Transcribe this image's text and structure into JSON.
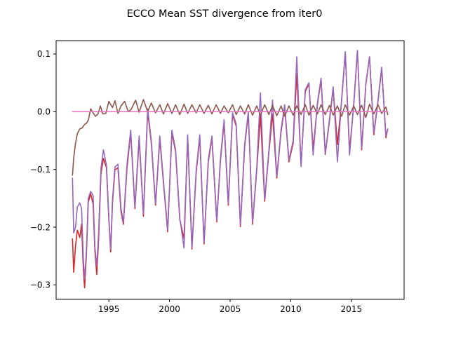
{
  "chart_data": {
    "type": "line",
    "title": "ECCO Mean SST divergence from iter0",
    "xlabel": "",
    "ylabel": "",
    "xlim": [
      1990.65,
      2019.35
    ],
    "ylim": [
      -0.325,
      0.123
    ],
    "x_ticks": [
      1995,
      2000,
      2005,
      2010,
      2015
    ],
    "y_ticks": [
      -0.3,
      -0.2,
      -0.1,
      0.0,
      0.1
    ],
    "x_tick_labels": [
      "1995",
      "2000",
      "2005",
      "2010",
      "2015"
    ],
    "y_tick_labels": [
      "−0.3",
      "−0.2",
      "−0.1",
      "0.0",
      "0.1"
    ],
    "grid": false,
    "legend": "none",
    "series": [
      {
        "color": "#d62728",
        "points": [
          [
            1992.0,
            -0.22
          ],
          [
            1992.1,
            -0.278
          ],
          [
            1992.25,
            -0.233
          ],
          [
            1992.4,
            -0.205
          ],
          [
            1992.6,
            -0.218
          ],
          [
            1992.75,
            -0.195
          ],
          [
            1992.9,
            -0.275
          ],
          [
            1993.0,
            -0.305
          ],
          [
            1993.15,
            -0.247
          ],
          [
            1993.3,
            -0.157
          ],
          [
            1993.5,
            -0.142
          ],
          [
            1993.7,
            -0.16
          ],
          [
            1993.85,
            -0.242
          ],
          [
            1994.0,
            -0.282
          ],
          [
            1994.15,
            -0.223
          ],
          [
            1994.35,
            -0.107
          ],
          [
            1994.55,
            -0.081
          ],
          [
            1994.8,
            -0.097
          ],
          [
            1995.0,
            -0.187
          ],
          [
            1995.15,
            -0.243
          ],
          [
            1995.3,
            -0.158
          ],
          [
            1995.5,
            -0.101
          ],
          [
            1995.75,
            -0.097
          ],
          [
            1996.0,
            -0.173
          ],
          [
            1996.2,
            -0.195
          ],
          [
            1996.5,
            -0.097
          ],
          [
            1996.8,
            -0.036
          ],
          [
            1997.15,
            -0.168
          ],
          [
            1997.5,
            -0.047
          ],
          [
            1997.85,
            -0.181
          ],
          [
            1998.2,
            0.0
          ],
          [
            1998.5,
            -0.054
          ],
          [
            1998.85,
            -0.162
          ],
          [
            1999.2,
            -0.047
          ],
          [
            1999.5,
            -0.123
          ],
          [
            1999.85,
            -0.208
          ],
          [
            2000.2,
            -0.037
          ],
          [
            2000.5,
            -0.069
          ],
          [
            2000.85,
            -0.187
          ],
          [
            2001.2,
            -0.22
          ],
          [
            2001.5,
            -0.044
          ],
          [
            2001.85,
            -0.238
          ],
          [
            2002.2,
            -0.106
          ],
          [
            2002.5,
            -0.045
          ],
          [
            2002.85,
            -0.229
          ],
          [
            2003.2,
            -0.087
          ],
          [
            2003.5,
            -0.046
          ],
          [
            2003.9,
            -0.191
          ],
          [
            2004.2,
            -0.086
          ],
          [
            2004.5,
            -0.018
          ],
          [
            2004.85,
            -0.162
          ],
          [
            2005.2,
            -0.005
          ],
          [
            2005.5,
            -0.025
          ],
          [
            2005.85,
            -0.199
          ],
          [
            2006.2,
            -0.06
          ],
          [
            2006.5,
            -0.003
          ],
          [
            2006.85,
            -0.195
          ],
          [
            2007.2,
            -0.1
          ],
          [
            2007.5,
            -0.006
          ],
          [
            2007.85,
            -0.155
          ],
          [
            2008.2,
            -0.07
          ],
          [
            2008.5,
            -0.004
          ],
          [
            2008.85,
            -0.115
          ],
          [
            2009.2,
            -0.035
          ],
          [
            2009.5,
            0.008
          ],
          [
            2009.85,
            -0.087
          ],
          [
            2010.2,
            -0.055
          ],
          [
            2010.5,
            0.066
          ],
          [
            2010.85,
            -0.092
          ],
          [
            2011.2,
            0.035
          ],
          [
            2011.5,
            0.048
          ],
          [
            2011.85,
            -0.065
          ],
          [
            2012.2,
            0.012
          ],
          [
            2012.5,
            0.055
          ],
          [
            2012.85,
            -0.074
          ],
          [
            2013.2,
            -0.015
          ],
          [
            2013.5,
            0.04
          ],
          [
            2013.85,
            -0.057
          ],
          [
            2014.2,
            0.02
          ],
          [
            2014.5,
            0.102
          ],
          [
            2014.85,
            -0.068
          ],
          [
            2015.2,
            0.012
          ],
          [
            2015.5,
            0.105
          ],
          [
            2015.85,
            -0.066
          ],
          [
            2016.2,
            0.048
          ],
          [
            2016.5,
            0.095
          ],
          [
            2016.85,
            -0.04
          ],
          [
            2017.2,
            0.018
          ],
          [
            2017.5,
            0.075
          ],
          [
            2017.85,
            -0.045
          ],
          [
            2018.0,
            -0.03
          ]
        ]
      },
      {
        "color": "#9467bd",
        "points": [
          [
            1992.0,
            -0.115
          ],
          [
            1992.1,
            -0.21
          ],
          [
            1992.25,
            -0.2
          ],
          [
            1992.4,
            -0.165
          ],
          [
            1992.6,
            -0.158
          ],
          [
            1992.75,
            -0.168
          ],
          [
            1992.9,
            -0.258
          ],
          [
            1993.0,
            -0.29
          ],
          [
            1993.15,
            -0.24
          ],
          [
            1993.3,
            -0.15
          ],
          [
            1993.5,
            -0.138
          ],
          [
            1993.7,
            -0.145
          ],
          [
            1993.85,
            -0.235
          ],
          [
            1994.0,
            -0.268
          ],
          [
            1994.15,
            -0.212
          ],
          [
            1994.35,
            -0.098
          ],
          [
            1994.55,
            -0.066
          ],
          [
            1994.8,
            -0.093
          ],
          [
            1995.0,
            -0.183
          ],
          [
            1995.15,
            -0.238
          ],
          [
            1995.3,
            -0.152
          ],
          [
            1995.5,
            -0.096
          ],
          [
            1995.75,
            -0.091
          ],
          [
            1996.0,
            -0.167
          ],
          [
            1996.2,
            -0.192
          ],
          [
            1996.5,
            -0.09
          ],
          [
            1996.8,
            -0.032
          ],
          [
            1997.15,
            -0.165
          ],
          [
            1997.5,
            -0.042
          ],
          [
            1997.85,
            -0.177
          ],
          [
            1998.2,
            0.005
          ],
          [
            1998.5,
            -0.05
          ],
          [
            1998.85,
            -0.159
          ],
          [
            1999.2,
            -0.042
          ],
          [
            1999.5,
            -0.119
          ],
          [
            1999.85,
            -0.205
          ],
          [
            2000.2,
            -0.032
          ],
          [
            2000.5,
            -0.066
          ],
          [
            2000.85,
            -0.184
          ],
          [
            2001.2,
            -0.236
          ],
          [
            2001.5,
            -0.04
          ],
          [
            2001.85,
            -0.235
          ],
          [
            2002.2,
            -0.102
          ],
          [
            2002.5,
            -0.04
          ],
          [
            2002.85,
            -0.226
          ],
          [
            2003.2,
            -0.083
          ],
          [
            2003.5,
            -0.042
          ],
          [
            2003.9,
            -0.188
          ],
          [
            2004.2,
            -0.082
          ],
          [
            2004.5,
            -0.014
          ],
          [
            2004.85,
            -0.159
          ],
          [
            2005.2,
            -0.002
          ],
          [
            2005.5,
            -0.021
          ],
          [
            2005.85,
            -0.196
          ],
          [
            2006.2,
            -0.056
          ],
          [
            2006.5,
            0.0
          ],
          [
            2006.85,
            -0.192
          ],
          [
            2007.2,
            -0.096
          ],
          [
            2007.5,
            0.033
          ],
          [
            2007.85,
            -0.152
          ],
          [
            2008.2,
            -0.066
          ],
          [
            2008.5,
            0.02
          ],
          [
            2008.85,
            -0.112
          ],
          [
            2009.2,
            -0.031
          ],
          [
            2009.5,
            0.012
          ],
          [
            2009.85,
            -0.084
          ],
          [
            2010.2,
            -0.05
          ],
          [
            2010.5,
            0.095
          ],
          [
            2010.85,
            -0.095
          ],
          [
            2011.2,
            0.038
          ],
          [
            2011.5,
            0.05
          ],
          [
            2011.85,
            -0.075
          ],
          [
            2012.2,
            0.015
          ],
          [
            2012.5,
            0.058
          ],
          [
            2012.85,
            -0.072
          ],
          [
            2013.2,
            -0.012
          ],
          [
            2013.5,
            0.043
          ],
          [
            2013.85,
            -0.087
          ],
          [
            2014.2,
            0.022
          ],
          [
            2014.5,
            0.104
          ],
          [
            2014.85,
            -0.075
          ],
          [
            2015.2,
            0.015
          ],
          [
            2015.5,
            0.106
          ],
          [
            2015.85,
            -0.063
          ],
          [
            2016.2,
            0.05
          ],
          [
            2016.5,
            0.095
          ],
          [
            2016.85,
            -0.037
          ],
          [
            2017.2,
            0.02
          ],
          [
            2017.5,
            0.077
          ],
          [
            2017.85,
            -0.042
          ],
          [
            2018.0,
            -0.03
          ]
        ]
      },
      {
        "color": "#8c564b",
        "points": [
          [
            1992.0,
            -0.11
          ],
          [
            1992.1,
            -0.08
          ],
          [
            1992.25,
            -0.055
          ],
          [
            1992.4,
            -0.038
          ],
          [
            1992.6,
            -0.03
          ],
          [
            1992.8,
            -0.028
          ],
          [
            1993.0,
            -0.022
          ],
          [
            1993.15,
            -0.02
          ],
          [
            1993.3,
            -0.015
          ],
          [
            1993.5,
            0.005
          ],
          [
            1993.7,
            -0.002
          ],
          [
            1993.9,
            -0.008
          ],
          [
            1994.1,
            -0.004
          ],
          [
            1994.3,
            0.01
          ],
          [
            1994.5,
            -0.004
          ],
          [
            1994.75,
            -0.003
          ],
          [
            1995.0,
            0.018
          ],
          [
            1995.3,
            0.007
          ],
          [
            1995.5,
            0.019
          ],
          [
            1995.75,
            -0.003
          ],
          [
            1996.0,
            0.01
          ],
          [
            1996.3,
            0.018
          ],
          [
            1996.6,
            0.0
          ],
          [
            1996.85,
            0.004
          ],
          [
            1997.2,
            0.02
          ],
          [
            1997.5,
            -0.001
          ],
          [
            1997.85,
            0.021
          ],
          [
            1998.2,
            0.0
          ],
          [
            1998.5,
            0.015
          ],
          [
            1998.85,
            -0.002
          ],
          [
            1999.2,
            0.012
          ],
          [
            1999.5,
            -0.004
          ],
          [
            1999.85,
            0.014
          ],
          [
            2000.2,
            -0.003
          ],
          [
            2000.5,
            0.012
          ],
          [
            2000.85,
            -0.005
          ],
          [
            2001.2,
            0.013
          ],
          [
            2001.5,
            -0.003
          ],
          [
            2001.85,
            0.012
          ],
          [
            2002.2,
            -0.002
          ],
          [
            2002.5,
            0.012
          ],
          [
            2002.85,
            -0.003
          ],
          [
            2003.2,
            0.011
          ],
          [
            2003.5,
            -0.004
          ],
          [
            2003.85,
            0.012
          ],
          [
            2004.2,
            -0.003
          ],
          [
            2004.5,
            0.01
          ],
          [
            2004.85,
            -0.002
          ],
          [
            2005.2,
            0.012
          ],
          [
            2005.5,
            -0.005
          ],
          [
            2005.85,
            0.01
          ],
          [
            2006.2,
            -0.004
          ],
          [
            2006.5,
            0.012
          ],
          [
            2006.85,
            -0.006
          ],
          [
            2007.2,
            0.01
          ],
          [
            2007.5,
            -0.006
          ],
          [
            2007.85,
            0.012
          ],
          [
            2008.2,
            -0.005
          ],
          [
            2008.5,
            0.011
          ],
          [
            2008.85,
            -0.007
          ],
          [
            2009.2,
            0.01
          ],
          [
            2009.5,
            -0.008
          ],
          [
            2009.85,
            0.01
          ],
          [
            2010.2,
            -0.006
          ],
          [
            2010.5,
            0.01
          ],
          [
            2010.85,
            -0.005
          ],
          [
            2011.2,
            0.012
          ],
          [
            2011.5,
            -0.006
          ],
          [
            2011.85,
            0.011
          ],
          [
            2012.2,
            -0.004
          ],
          [
            2012.5,
            0.012
          ],
          [
            2012.85,
            -0.005
          ],
          [
            2013.2,
            0.011
          ],
          [
            2013.5,
            -0.006
          ],
          [
            2013.85,
            0.01
          ],
          [
            2014.2,
            -0.008
          ],
          [
            2014.5,
            0.012
          ],
          [
            2014.85,
            -0.006
          ],
          [
            2015.2,
            0.01
          ],
          [
            2015.5,
            -0.005
          ],
          [
            2015.85,
            0.011
          ],
          [
            2016.2,
            -0.01
          ],
          [
            2016.5,
            0.013
          ],
          [
            2016.85,
            -0.004
          ],
          [
            2017.2,
            0.012
          ],
          [
            2017.5,
            -0.003
          ],
          [
            2017.85,
            0.008
          ],
          [
            2018.0,
            -0.005
          ]
        ]
      },
      {
        "color": "#e377c2",
        "points": [
          [
            1992.0,
            0.0
          ],
          [
            2018.0,
            0.0
          ]
        ]
      }
    ]
  }
}
